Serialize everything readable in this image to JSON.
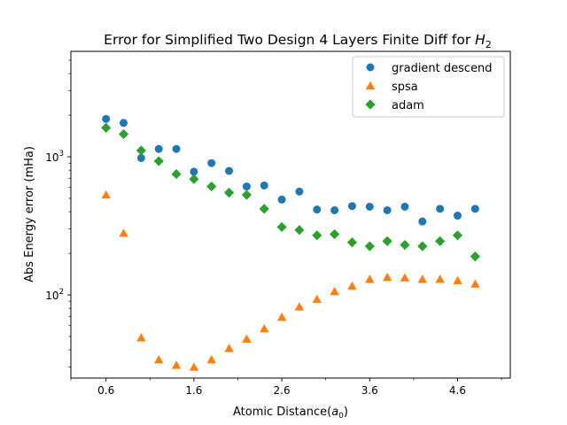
{
  "chart_data": {
    "type": "scatter",
    "title": "Error for Simplified Two Design 4 Layers Finite Diff for ",
    "title_math": "H",
    "title_math_sub": "2",
    "xlabel": "Atomic Distance(",
    "xlabel_math": "a",
    "xlabel_math_sub": "0",
    "xlabel_end": ")",
    "ylabel": "Abs Energy error (mHa)",
    "y_scale": "log",
    "xlim": [
      0.2,
      5.2
    ],
    "ylim": [
      25,
      5800
    ],
    "x_ticks": [
      0.6,
      1.6,
      2.6,
      3.6,
      4.6
    ],
    "x_tick_labels": [
      "0.6",
      "1.6",
      "2.6",
      "3.6",
      "4.6"
    ],
    "x_minor_ticks": [
      0.2,
      1.1,
      2.1,
      3.1,
      4.1,
      5.1
    ],
    "y_ticks": [
      100,
      1000
    ],
    "y_tick_labels": [
      {
        "base": "10",
        "exp": "2"
      },
      {
        "base": "10",
        "exp": "3"
      }
    ],
    "legend_position": "top-right",
    "x": [
      0.6,
      0.8,
      1.0,
      1.2,
      1.4,
      1.6,
      1.8,
      2.0,
      2.2,
      2.4,
      2.6,
      2.8,
      3.0,
      3.2,
      3.4,
      3.6,
      3.8,
      4.0,
      4.2,
      4.4,
      4.6,
      4.8
    ],
    "series": [
      {
        "name": "gradient descend",
        "marker": "circle",
        "color": "#1f77b4",
        "values": [
          1880,
          1760,
          980,
          1140,
          1140,
          780,
          900,
          790,
          610,
          620,
          490,
          560,
          415,
          410,
          440,
          435,
          410,
          435,
          340,
          420,
          375,
          420
        ]
      },
      {
        "name": "spsa",
        "marker": "triangle",
        "color": "#ff7f0e",
        "values": [
          530,
          280,
          49,
          34,
          31,
          30,
          34,
          41,
          48,
          57,
          69,
          82,
          93,
          106,
          116,
          130,
          134,
          133,
          130,
          130,
          127,
          120
        ]
      },
      {
        "name": "adam",
        "marker": "diamond",
        "color": "#2ca02c",
        "values": [
          1620,
          1460,
          1110,
          930,
          750,
          690,
          610,
          550,
          530,
          420,
          310,
          295,
          270,
          275,
          240,
          225,
          245,
          230,
          225,
          245,
          270,
          190
        ]
      }
    ]
  }
}
